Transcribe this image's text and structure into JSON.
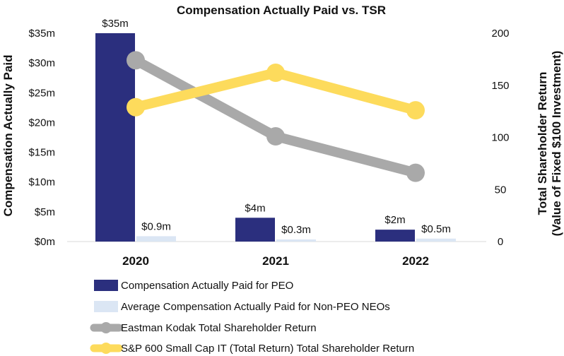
{
  "chart_data": {
    "type": "bar+line",
    "title": "Compensation Actually Paid vs. TSR",
    "categories": [
      "2020",
      "2021",
      "2022"
    ],
    "y_left": {
      "label": "Compensation Actually Paid",
      "ticks": [
        "$0m",
        "$5m",
        "$10m",
        "$15m",
        "$20m",
        "$25m",
        "$30m",
        "$35m"
      ],
      "ylim": [
        0,
        35
      ]
    },
    "y_right": {
      "label_line1": "Total Shareholder Return",
      "label_line2": "(Value of Fixed $100 Investment)",
      "ticks": [
        "0",
        "50",
        "100",
        "150",
        "200"
      ],
      "ylim": [
        0,
        200
      ]
    },
    "bar_series": [
      {
        "name": "Compensation Actually Paid for PEO",
        "color": "#2b2f7e",
        "values": [
          35,
          4,
          2
        ],
        "labels": [
          "$35m",
          "$4m",
          "$2m"
        ]
      },
      {
        "name": "Average Compensation Actually Paid for Non-PEO NEOs",
        "color": "#dbe6f4",
        "values": [
          0.9,
          0.3,
          0.5
        ],
        "labels": [
          "$0.9m",
          "$0.3m",
          "$0.5m"
        ]
      }
    ],
    "line_series": [
      {
        "name": "Eastman Kodak Total Shareholder Return",
        "color": "#a9a9a9",
        "values": [
          174,
          101,
          66
        ]
      },
      {
        "name": "S&P 600 Small Cap IT (Total Return) Total Shareholder Return",
        "color": "#fddb5c",
        "values": [
          129,
          162,
          126
        ]
      }
    ]
  }
}
